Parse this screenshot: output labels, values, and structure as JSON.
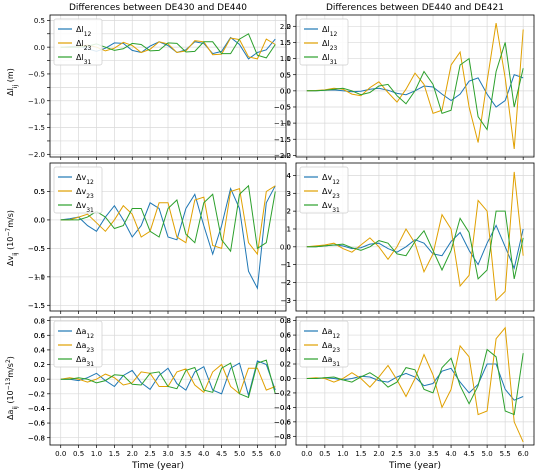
{
  "figure": {
    "xlabel": "Time (year)"
  },
  "rows": [
    {
      "ylabel_html": "Δl<tspan baseline-shift='sub' font-size='6'>ij</tspan> (m)",
      "ylabel_plain": "Δl_ij (m)",
      "legend_labels": [
        "Δl_12",
        "Δl_23",
        "Δl_31"
      ]
    },
    {
      "ylabel_html": "Δv<tspan baseline-shift='sub' font-size='6'>ij</tspan> (10<tspan baseline-shift='super' font-size='6'>−7</tspan>m/s)",
      "ylabel_plain": "Δv_ij (10^-7 m/s)",
      "legend_labels": [
        "Δv_12",
        "Δv_23",
        "Δv_31"
      ]
    },
    {
      "ylabel_html": "Δa<tspan baseline-shift='sub' font-size='6'>ij</tspan> (10<tspan baseline-shift='super' font-size='6'>−13</tspan>m/s<tspan baseline-shift='super' font-size='6'>2</tspan>)",
      "ylabel_plain": "Δa_ij (10^-13 m/s^2)",
      "legend_labels": [
        "Δa_12",
        "Δa_23",
        "Δa_31"
      ]
    }
  ],
  "colors": {
    "s12": "#1f77b4",
    "s23": "#e0a000",
    "s31": "#2ca02c"
  },
  "chart_data": [
    {
      "type": "line",
      "title": "Differences between DE430 and DE440",
      "xlabel": "",
      "ylabel": "Δl_ij (m)",
      "xlim": [
        -0.3,
        6.3
      ],
      "ylim": [
        -2.05,
        0.6
      ],
      "xticks": [
        0.0,
        0.5,
        1.0,
        1.5,
        2.0,
        2.5,
        3.0,
        3.5,
        4.0,
        4.5,
        5.0,
        5.5,
        6.0
      ],
      "yticks": [
        -2.0,
        -1.75,
        -1.5,
        -1.25,
        -1.0,
        -0.75,
        -0.5,
        -0.25,
        0.0,
        0.25,
        0.5
      ],
      "ytick_labels": [
        "−2.0",
        "",
        "−1.5",
        "",
        "−1.0",
        "",
        "−0.5",
        "",
        "0.0",
        "",
        "0.5"
      ],
      "grid": true,
      "legend": "upper left",
      "x": [
        0.0,
        0.25,
        0.5,
        0.75,
        1.0,
        1.25,
        1.5,
        1.75,
        2.0,
        2.25,
        2.5,
        2.75,
        3.0,
        3.25,
        3.5,
        3.75,
        4.0,
        4.25,
        4.5,
        4.75,
        5.0,
        5.25,
        5.5,
        5.75,
        6.0
      ],
      "series": [
        {
          "name": "Δl_12",
          "color": "#1f77b4",
          "values": [
            0,
            0.01,
            0.02,
            -0.03,
            -0.08,
            -0.02,
            0.08,
            0.07,
            -0.06,
            -0.1,
            0.02,
            0.1,
            0.03,
            -0.1,
            -0.05,
            0.1,
            0.07,
            -0.12,
            -0.08,
            0.18,
            0.05,
            -0.22,
            -0.1,
            -0.05,
            0.15
          ]
        },
        {
          "name": "Δl_23",
          "color": "#e0a000",
          "values": [
            0,
            0.0,
            0.01,
            0.04,
            0.0,
            -0.07,
            -0.02,
            0.09,
            0.03,
            -0.1,
            -0.04,
            0.1,
            0.06,
            -0.1,
            -0.07,
            0.12,
            0.1,
            -0.14,
            -0.13,
            0.17,
            0.14,
            -0.18,
            -0.22,
            0.15,
            0.05
          ]
        },
        {
          "name": "Δl_31",
          "color": "#2ca02c",
          "values": [
            0,
            0.0,
            0.0,
            0.02,
            0.06,
            0.0,
            -0.06,
            -0.03,
            0.07,
            0.05,
            -0.07,
            -0.06,
            0.08,
            0.07,
            -0.09,
            -0.08,
            0.1,
            0.1,
            -0.12,
            -0.12,
            0.15,
            0.25,
            -0.15,
            -0.2,
            0.05
          ]
        }
      ]
    },
    {
      "type": "line",
      "title": "Differences between DE440 and DE421",
      "xlabel": "",
      "ylabel": "",
      "xlim": [
        -0.3,
        6.3
      ],
      "ylim": [
        -2.05,
        2.35
      ],
      "xticks": [
        0.0,
        0.5,
        1.0,
        1.5,
        2.0,
        2.5,
        3.0,
        3.5,
        4.0,
        4.5,
        5.0,
        5.5,
        6.0
      ],
      "yticks": [
        -2.0,
        -1.5,
        -1.0,
        -0.5,
        0.0,
        0.5,
        1.0,
        1.5,
        2.0
      ],
      "ytick_labels": [],
      "grid": true,
      "legend": "upper left",
      "x": [
        0.0,
        0.25,
        0.5,
        0.75,
        1.0,
        1.25,
        1.5,
        1.75,
        2.0,
        2.25,
        2.5,
        2.75,
        3.0,
        3.25,
        3.5,
        3.75,
        4.0,
        4.25,
        4.5,
        4.75,
        5.0,
        5.25,
        5.5,
        5.75,
        6.0
      ],
      "series": [
        {
          "name": "Δl_12",
          "color": "#1f77b4",
          "values": [
            0,
            0.0,
            0.02,
            0.03,
            0.0,
            -0.03,
            -0.01,
            0.05,
            0.08,
            0.02,
            -0.08,
            -0.12,
            0.0,
            0.15,
            0.12,
            -0.1,
            -0.3,
            -0.1,
            0.3,
            0.4,
            -0.1,
            -0.5,
            -0.3,
            0.5,
            0.4
          ]
        },
        {
          "name": "Δl_23",
          "color": "#e0a000",
          "values": [
            0,
            0.01,
            0.03,
            0.08,
            0.05,
            -0.1,
            -0.15,
            0.1,
            0.28,
            -0.05,
            -0.35,
            0.05,
            0.55,
            0.2,
            -0.7,
            -0.6,
            0.8,
            1.2,
            -0.5,
            -1.6,
            0.3,
            2.1,
            0.4,
            -1.8,
            1.9
          ]
        },
        {
          "name": "Δl_31",
          "color": "#2ca02c",
          "values": [
            0,
            0.0,
            0.02,
            0.05,
            0.08,
            0.0,
            -0.12,
            -0.05,
            0.15,
            0.2,
            -0.15,
            -0.4,
            0.0,
            0.6,
            0.2,
            -0.7,
            -0.6,
            0.8,
            1.0,
            -0.8,
            -1.2,
            0.6,
            1.5,
            -0.5,
            0.7
          ]
        }
      ]
    },
    {
      "type": "line",
      "title": "",
      "xlabel": "",
      "ylabel": "Δv_ij (10^-7 m/s)",
      "xlim": [
        -0.3,
        6.3
      ],
      "ylim": [
        -1.6,
        1.0
      ],
      "xticks": [
        0.0,
        0.5,
        1.0,
        1.5,
        2.0,
        2.5,
        3.0,
        3.5,
        4.0,
        4.5,
        5.0,
        5.5,
        6.0
      ],
      "yticks": [
        -1.5,
        -1.0,
        -0.5,
        0.0,
        0.5
      ],
      "ytick_labels": [],
      "grid": true,
      "legend": "upper left",
      "x": [
        0.0,
        0.25,
        0.5,
        0.75,
        1.0,
        1.25,
        1.5,
        1.75,
        2.0,
        2.25,
        2.5,
        2.75,
        3.0,
        3.25,
        3.5,
        3.75,
        4.0,
        4.25,
        4.5,
        4.75,
        5.0,
        5.25,
        5.5,
        5.75,
        6.0
      ],
      "series": [
        {
          "name": "Δv_12",
          "color": "#1f77b4",
          "values": [
            0,
            0.02,
            0.05,
            -0.1,
            -0.2,
            0.05,
            0.25,
            0.0,
            -0.3,
            -0.1,
            0.3,
            0.2,
            -0.3,
            -0.35,
            0.2,
            0.45,
            -0.1,
            -0.6,
            -0.1,
            0.55,
            0.2,
            -0.9,
            -1.2,
            0.3,
            0.6
          ]
        },
        {
          "name": "Δv_23",
          "color": "#e0a000",
          "values": [
            0,
            0.0,
            0.05,
            0.1,
            -0.05,
            -0.2,
            0.0,
            0.25,
            0.1,
            -0.3,
            -0.2,
            0.3,
            0.3,
            -0.3,
            -0.4,
            0.35,
            0.4,
            -0.45,
            -0.5,
            0.5,
            0.55,
            -0.4,
            -0.6,
            0.5,
            0.6
          ]
        },
        {
          "name": "Δv_31",
          "color": "#2ca02c",
          "values": [
            0,
            0.0,
            0.0,
            0.05,
            0.15,
            0.05,
            -0.15,
            -0.1,
            0.2,
            0.2,
            -0.2,
            -0.3,
            0.2,
            0.35,
            -0.25,
            -0.4,
            0.3,
            0.45,
            -0.35,
            -0.55,
            0.45,
            0.6,
            -0.5,
            -0.4,
            0.5
          ]
        }
      ]
    },
    {
      "type": "line",
      "title": "",
      "xlabel": "",
      "ylabel": "",
      "xlim": [
        -0.3,
        6.3
      ],
      "ylim": [
        -3.6,
        4.7
      ],
      "xticks": [
        0.0,
        0.5,
        1.0,
        1.5,
        2.0,
        2.5,
        3.0,
        3.5,
        4.0,
        4.5,
        5.0,
        5.5,
        6.0
      ],
      "yticks": [
        -3,
        -2,
        -1,
        0,
        1,
        2,
        3,
        4
      ],
      "ytick_labels": [],
      "grid": true,
      "legend": "upper left",
      "x": [
        0.0,
        0.25,
        0.5,
        0.75,
        1.0,
        1.25,
        1.5,
        1.75,
        2.0,
        2.25,
        2.5,
        2.75,
        3.0,
        3.25,
        3.5,
        3.75,
        4.0,
        4.25,
        4.5,
        4.75,
        5.0,
        5.25,
        5.5,
        5.75,
        6.0
      ],
      "series": [
        {
          "name": "Δv_12",
          "color": "#1f77b4",
          "values": [
            0,
            0.0,
            0.05,
            0.1,
            0.05,
            -0.1,
            -0.05,
            0.15,
            0.2,
            -0.1,
            -0.3,
            0.0,
            0.4,
            0.2,
            -0.4,
            -0.5,
            0.3,
            0.8,
            -0.2,
            -1.0,
            0.2,
            1.2,
            0.0,
            -1.2,
            1.0
          ]
        },
        {
          "name": "Δv_23",
          "color": "#e0a000",
          "values": [
            0,
            0.05,
            0.1,
            0.2,
            -0.1,
            -0.3,
            0.1,
            0.5,
            0.0,
            -0.7,
            0.0,
            1.0,
            0.2,
            -1.4,
            -0.4,
            1.8,
            1.0,
            -2.2,
            -1.6,
            2.6,
            2.0,
            -3.0,
            -2.5,
            4.2,
            -0.5
          ]
        },
        {
          "name": "Δv_31",
          "color": "#2ca02c",
          "values": [
            0,
            0.0,
            0.05,
            0.1,
            0.15,
            -0.05,
            -0.2,
            0.0,
            0.35,
            0.2,
            -0.4,
            -0.5,
            0.3,
            0.9,
            -0.2,
            -1.3,
            -0.2,
            1.6,
            0.8,
            -1.8,
            -1.3,
            2.0,
            2.0,
            -1.8,
            0.5
          ]
        }
      ]
    },
    {
      "type": "line",
      "title": "",
      "xlabel": "Time (year)",
      "ylabel": "Δa_ij (10^-13 m/s^2)",
      "xlim": [
        -0.3,
        6.3
      ],
      "ylim": [
        -0.9,
        0.85
      ],
      "xticks": [
        0.0,
        0.5,
        1.0,
        1.5,
        2.0,
        2.5,
        3.0,
        3.5,
        4.0,
        4.5,
        5.0,
        5.5,
        6.0
      ],
      "yticks": [
        -0.8,
        -0.6,
        -0.4,
        -0.2,
        0.0,
        0.2,
        0.4,
        0.6,
        0.8
      ],
      "ytick_labels": [],
      "grid": true,
      "legend": "upper left",
      "x": [
        0.0,
        0.25,
        0.5,
        0.75,
        1.0,
        1.25,
        1.5,
        1.75,
        2.0,
        2.25,
        2.5,
        2.75,
        3.0,
        3.25,
        3.5,
        3.75,
        4.0,
        4.25,
        4.5,
        4.75,
        5.0,
        5.25,
        5.5,
        5.75,
        6.0
      ],
      "series": [
        {
          "name": "Δa_12",
          "color": "#1f77b4",
          "values": [
            0,
            0.0,
            -0.02,
            0.02,
            0.08,
            -0.02,
            -0.1,
            0.05,
            0.12,
            -0.05,
            -0.14,
            0.05,
            0.15,
            -0.06,
            -0.15,
            0.1,
            0.17,
            -0.15,
            -0.2,
            0.15,
            0.22,
            -0.22,
            0.25,
            0.2,
            -0.15
          ]
        },
        {
          "name": "Δa_23",
          "color": "#e0a000",
          "values": [
            0,
            0.02,
            0.0,
            -0.04,
            0.0,
            0.07,
            0.02,
            -0.08,
            -0.05,
            0.1,
            0.08,
            -0.1,
            -0.1,
            0.1,
            0.14,
            -0.08,
            -0.18,
            0.1,
            0.2,
            -0.1,
            -0.2,
            0.15,
            0.15,
            -0.15,
            -0.1
          ]
        },
        {
          "name": "Δa_31",
          "color": "#2ca02c",
          "values": [
            0,
            0.0,
            0.02,
            0.0,
            -0.05,
            -0.02,
            0.06,
            0.05,
            -0.07,
            -0.08,
            0.08,
            0.1,
            -0.1,
            -0.13,
            0.12,
            0.16,
            -0.15,
            -0.18,
            0.15,
            0.22,
            -0.2,
            -0.25,
            0.22,
            0.26,
            -0.2
          ]
        }
      ]
    },
    {
      "type": "line",
      "title": "",
      "xlabel": "Time (year)",
      "ylabel": "",
      "xlim": [
        -0.3,
        6.3
      ],
      "ylim": [
        -0.92,
        0.85
      ],
      "xticks": [
        0.0,
        0.5,
        1.0,
        1.5,
        2.0,
        2.5,
        3.0,
        3.5,
        4.0,
        4.5,
        5.0,
        5.5,
        6.0
      ],
      "yticks": [
        -0.8,
        -0.6,
        -0.4,
        -0.2,
        0.0,
        0.2,
        0.4,
        0.6,
        0.8
      ],
      "ytick_labels": [],
      "grid": true,
      "legend": "upper left",
      "x": [
        0.0,
        0.25,
        0.5,
        0.75,
        1.0,
        1.25,
        1.5,
        1.75,
        2.0,
        2.25,
        2.5,
        2.75,
        3.0,
        3.25,
        3.5,
        3.75,
        4.0,
        4.25,
        4.5,
        4.75,
        5.0,
        5.25,
        5.5,
        5.75,
        6.0
      ],
      "series": [
        {
          "name": "Δa_12",
          "color": "#1f77b4",
          "values": [
            0,
            0.0,
            0.01,
            0.0,
            -0.02,
            0.0,
            0.03,
            0.02,
            -0.03,
            -0.05,
            0.02,
            0.07,
            0.02,
            -0.1,
            -0.07,
            0.1,
            0.14,
            -0.05,
            -0.2,
            -0.08,
            0.2,
            0.2,
            -0.15,
            -0.3,
            -0.25
          ]
        },
        {
          "name": "Δa_23",
          "color": "#e0a000",
          "values": [
            0,
            0.01,
            0.0,
            -0.05,
            0.0,
            0.08,
            0.0,
            -0.12,
            0.02,
            0.18,
            -0.02,
            -0.25,
            0.0,
            0.33,
            0.05,
            -0.4,
            -0.15,
            0.45,
            0.3,
            -0.5,
            -0.45,
            0.55,
            0.7,
            -0.6,
            -0.88
          ]
        },
        {
          "name": "Δa_31",
          "color": "#2ca02c",
          "values": [
            0,
            0.0,
            0.01,
            0.02,
            -0.02,
            -0.05,
            0.02,
            0.08,
            0.0,
            -0.12,
            -0.05,
            0.15,
            0.12,
            -0.15,
            -0.2,
            0.15,
            0.28,
            -0.1,
            -0.35,
            -0.1,
            0.4,
            0.3,
            -0.45,
            -0.5,
            0.35
          ]
        }
      ]
    }
  ]
}
